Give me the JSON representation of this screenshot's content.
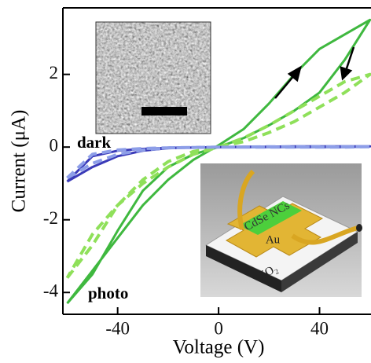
{
  "chart_data": {
    "type": "line",
    "x_label": "Voltage (V)",
    "y_label": "Current (μA)",
    "xlim": [
      -61.7,
      60.4
    ],
    "ylim": [
      -4.6,
      3.83
    ],
    "xticks": [
      -40,
      0,
      40
    ],
    "yticks": [
      -4,
      -2,
      0,
      2
    ],
    "x": [
      -60,
      -50,
      -40,
      -30,
      -20,
      -10,
      0,
      10,
      20,
      30,
      40,
      50,
      60,
      50,
      40,
      30,
      20,
      10,
      0,
      -10,
      -20,
      -30,
      -40,
      -50,
      -60
    ],
    "series": [
      {
        "color": "#3fb83f",
        "dashed": false,
        "values": [
          -4.3,
          -3.5,
          -2.3,
          -1.2,
          -0.55,
          -0.2,
          0,
          0.25,
          0.6,
          1.0,
          1.5,
          2.4,
          3.5,
          3.1,
          2.7,
          2.0,
          1.2,
          0.5,
          0.05,
          -0.35,
          -0.9,
          -1.6,
          -2.5,
          -3.4,
          -4.3
        ]
      },
      {
        "color": "#8fe05a",
        "dashed": true,
        "values": [
          -3.6,
          -2.7,
          -1.6,
          -0.9,
          -0.4,
          -0.12,
          0,
          0.15,
          0.4,
          0.7,
          1.1,
          1.5,
          2.0,
          1.8,
          1.4,
          1.0,
          0.6,
          0.25,
          0,
          -0.2,
          -0.55,
          -1.0,
          -1.6,
          -2.4,
          -3.6
        ]
      },
      {
        "color": "#3a3ab8",
        "dashed": false,
        "values": [
          -0.95,
          -0.55,
          -0.25,
          -0.1,
          -0.03,
          -0.01,
          0,
          0,
          0,
          0,
          0,
          0,
          0.02,
          0.02,
          0.02,
          0.02,
          0.01,
          0.01,
          0,
          -0.01,
          -0.02,
          -0.05,
          -0.1,
          -0.25,
          -0.95
        ]
      },
      {
        "color": "#8d9ee8",
        "dashed": true,
        "values": [
          -0.85,
          -0.45,
          -0.2,
          -0.08,
          -0.02,
          -0.01,
          0,
          0,
          0,
          0,
          0,
          0,
          0.01,
          0.01,
          0.01,
          0.01,
          0.01,
          0,
          0,
          -0.01,
          -0.02,
          -0.04,
          -0.08,
          -0.2,
          -0.85
        ]
      }
    ],
    "annotations": [
      "dark",
      "photo"
    ],
    "inset_labels": [
      "CdSe NCs",
      "Au",
      "SiO₂"
    ]
  }
}
